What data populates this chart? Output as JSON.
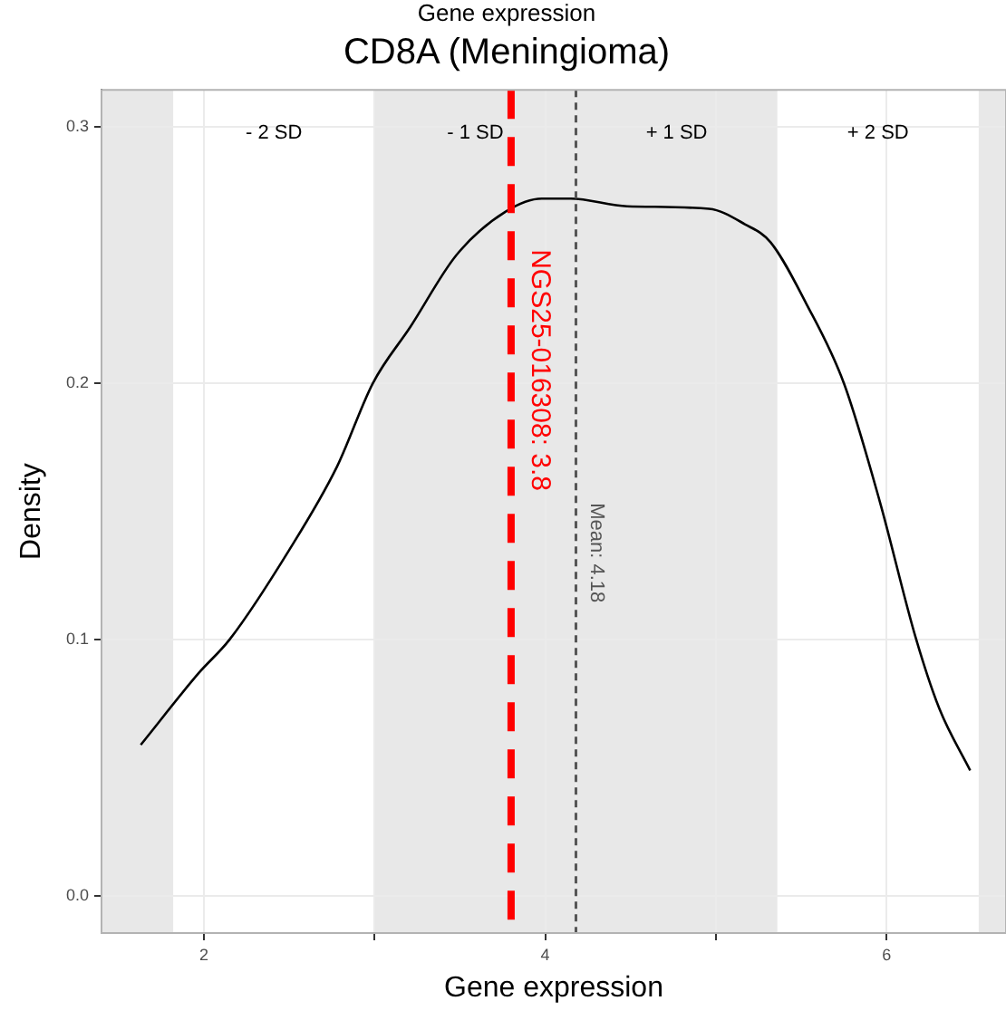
{
  "chart_data": {
    "type": "line",
    "subtitle": "Gene expression",
    "title": "CD8A (Meningioma)",
    "xlabel": "Gene expression",
    "ylabel": "Density",
    "x": [
      1.63,
      1.97,
      2.15,
      2.5,
      2.78,
      2.99,
      3.21,
      3.48,
      3.77,
      3.98,
      4.15,
      4.48,
      4.96,
      5.17,
      5.32,
      5.53,
      5.75,
      5.96,
      6.17,
      6.31,
      6.49
    ],
    "series": [
      {
        "color": "#000000",
        "values": [
          0.059,
          0.087,
          0.1,
          0.135,
          0.1675,
          0.2,
          0.222,
          0.25,
          0.267,
          0.272,
          0.272,
          0.269,
          0.268,
          0.262,
          0.255,
          0.231,
          0.2,
          0.154,
          0.101,
          0.073,
          0.049
        ]
      }
    ],
    "xlim": [
      1.4,
      6.7
    ],
    "ylim": [
      -0.0144,
      0.3144
    ],
    "xticks": [
      2,
      {
        "value": 3,
        "label": null
      },
      4,
      {
        "value": 5,
        "label": null
      },
      6
    ],
    "yticks": [
      {
        "value": 0,
        "label": "0.0"
      },
      0.1,
      0.2,
      0.3
    ],
    "bands": [
      {
        "axis": "x",
        "from": 1.4,
        "to": 1.82,
        "label": null,
        "color": "#e8e8e8"
      },
      {
        "axis": "x",
        "from": 3.0,
        "to": 4.18,
        "label": "- 1 SD",
        "color": "#e8e8e8"
      },
      {
        "axis": "x",
        "from": 4.18,
        "to": 5.36,
        "label": "+ 1 SD",
        "color": "#e8e8e8"
      },
      {
        "axis": "x",
        "from": 6.54,
        "to": 6.7,
        "label": null,
        "color": "#e8e8e8"
      }
    ],
    "ref_lines": [
      {
        "axis": "x",
        "value": 3.8,
        "label": "NGS25-016308: 3.8",
        "color": "#ff0000",
        "line_style": "dashed"
      },
      {
        "axis": "x",
        "value": 4.18,
        "label": "Mean: 4.18",
        "color": "#555555",
        "line_style": "dotted"
      }
    ],
    "annotations": [
      "- 2 SD",
      "+ 2 SD"
    ],
    "grid": true,
    "legend": false,
    "marker": "none",
    "line_style": "solid"
  }
}
